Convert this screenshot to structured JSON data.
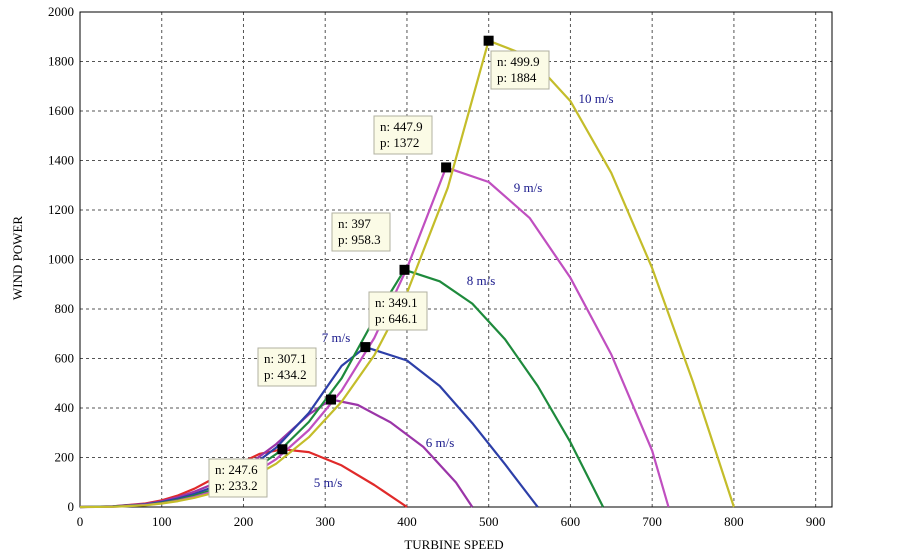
{
  "chart_data": {
    "type": "line",
    "title": "",
    "xlabel": "TURBINE SPEED",
    "ylabel": "WIND POWER",
    "xlim": [
      0,
      920
    ],
    "ylim": [
      0,
      2000
    ],
    "xticks": [
      0,
      100,
      200,
      300,
      400,
      500,
      600,
      700,
      800,
      900
    ],
    "yticks": [
      0,
      200,
      400,
      600,
      800,
      1000,
      1200,
      1400,
      1600,
      1800,
      2000
    ],
    "grid": true,
    "series": [
      {
        "name": "5 m/s",
        "color": "#e02a2a",
        "peak": {
          "n": 247.6,
          "p": 233.2
        },
        "zero": 400,
        "x": [
          0,
          40,
          80,
          100,
          120,
          140,
          160,
          180,
          200,
          220,
          247.6,
          280,
          320,
          360,
          400
        ],
        "y": [
          0,
          3,
          14,
          27,
          47,
          74,
          109,
          147,
          184,
          215,
          233.2,
          222,
          168,
          89,
          0
        ]
      },
      {
        "name": "6 m/s",
        "color": "#9b35a8",
        "peak": {
          "n": 307.1,
          "p": 434.2
        },
        "zero": 480,
        "x": [
          0,
          40,
          80,
          100,
          120,
          140,
          160,
          180,
          200,
          240,
          280,
          307.1,
          340,
          380,
          420,
          460,
          480
        ],
        "y": [
          0,
          3,
          12,
          23,
          40,
          62,
          89,
          121,
          156,
          254,
          374,
          434.2,
          412,
          342,
          243,
          99,
          0
        ]
      },
      {
        "name": "7 m/s",
        "color": "#2d3fa8",
        "peak": {
          "n": 349.1,
          "p": 646.1
        },
        "zero": 560,
        "x": [
          0,
          40,
          80,
          100,
          120,
          140,
          160,
          180,
          200,
          240,
          280,
          320,
          349.1,
          400,
          440,
          480,
          520,
          560
        ],
        "y": [
          0,
          2,
          10,
          20,
          34,
          53,
          77,
          106,
          141,
          240,
          380,
          570,
          646.1,
          592,
          489,
          339,
          173,
          0
        ]
      },
      {
        "name": "8 m/s",
        "color": "#1e8a3c",
        "peak": {
          "n": 397,
          "p": 958.3
        },
        "zero": 640,
        "x": [
          0,
          40,
          80,
          100,
          120,
          140,
          160,
          180,
          200,
          240,
          280,
          320,
          360,
          397,
          440,
          480,
          520,
          560,
          600,
          640
        ],
        "y": [
          0,
          2,
          9,
          17,
          29,
          46,
          67,
          92,
          123,
          214,
          344,
          520,
          760,
          958.3,
          912,
          822,
          678,
          489,
          262,
          0
        ]
      },
      {
        "name": "9 m/s",
        "color": "#c04fc0",
        "peak": {
          "n": 447.9,
          "p": 1372
        },
        "zero": 720,
        "x": [
          0,
          40,
          80,
          100,
          120,
          140,
          160,
          180,
          200,
          240,
          280,
          320,
          360,
          400,
          447.9,
          500,
          550,
          600,
          650,
          700,
          720
        ],
        "y": [
          0,
          1,
          8,
          15,
          26,
          41,
          60,
          82,
          110,
          193,
          311,
          470,
          683,
          965,
          1372,
          1313,
          1168,
          926,
          616,
          227,
          0
        ]
      },
      {
        "name": "10 m/s",
        "color": "#c4bd2a",
        "peak": {
          "n": 499.9,
          "p": 1884
        },
        "zero": 800,
        "x": [
          0,
          40,
          80,
          100,
          120,
          140,
          160,
          180,
          200,
          240,
          280,
          320,
          360,
          400,
          450,
          499.9,
          550,
          600,
          650,
          700,
          750,
          800
        ],
        "y": [
          0,
          1,
          7,
          14,
          24,
          37,
          54,
          75,
          100,
          175,
          282,
          425,
          613,
          865,
          1290,
          1884,
          1820,
          1640,
          1350,
          965,
          505,
          0
        ]
      }
    ],
    "datatips": [
      {
        "n_label": "n: 247.6",
        "p_label": "p: 233.2"
      },
      {
        "n_label": "n: 307.1",
        "p_label": "p: 434.2"
      },
      {
        "n_label": "n: 349.1",
        "p_label": "p: 646.1"
      },
      {
        "n_label": "n: 397",
        "p_label": "p: 958.3"
      },
      {
        "n_label": "n: 447.9",
        "p_label": "p: 1372"
      },
      {
        "n_label": "n: 499.9",
        "p_label": "p: 1884"
      }
    ]
  }
}
